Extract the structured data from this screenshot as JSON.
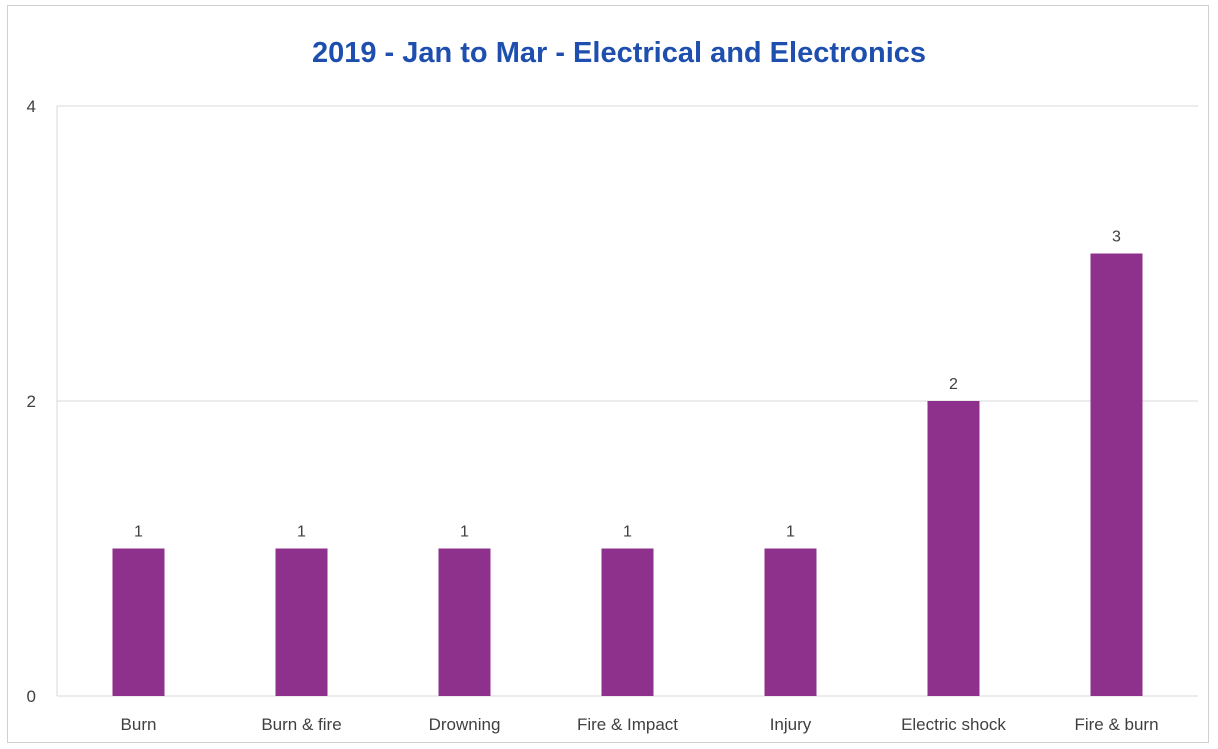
{
  "chart_data": {
    "type": "bar",
    "title": "2019 - Jan to Mar - Electrical and Electronics",
    "xlabel": "",
    "ylabel": "",
    "categories": [
      "Burn",
      "Burn & fire",
      "Drowning",
      "Fire & Impact",
      "Injury",
      "Electric shock",
      "Fire & burn"
    ],
    "values": [
      1,
      1,
      1,
      1,
      1,
      2,
      3
    ],
    "data_labels": [
      "1",
      "1",
      "1",
      "1",
      "1",
      "2",
      "3"
    ],
    "ylim": [
      0,
      4
    ],
    "yticks": [
      "0",
      "2",
      "4"
    ],
    "grid": true,
    "legend": "none",
    "bar_color": "#8E318C",
    "title_color": "#1F4FAE",
    "grid_color": "#D9D9D9"
  }
}
